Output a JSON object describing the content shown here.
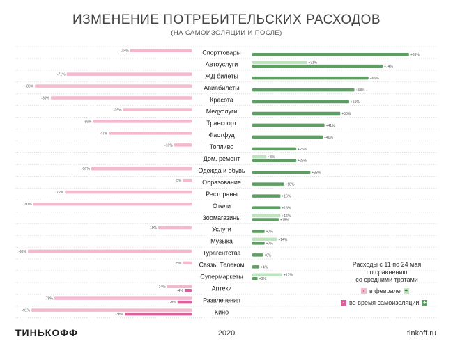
{
  "title": "ИЗМЕНЕНИЕ ПОТРЕБИТЕЛЬСКИХ РАСХОДОВ",
  "subtitle": "(НА САМОИЗОЛЯЦИИ И ПОСЛЕ)",
  "colors": {
    "neg_light": "#f4b8cf",
    "neg_dark": "#d9609a",
    "pos_light": "#bfe3bf",
    "pos_dark": "#5e9e62"
  },
  "chart_data": {
    "type": "bar",
    "title": "ИЗМЕНЕНИЕ ПОТРЕБИТЕЛЬСКИХ РАСХОДОВ",
    "subtitle": "(НА САМОИЗОЛЯЦИИ И ПОСЛЕ)",
    "xlim": [
      -95,
      95
    ],
    "categories": [
      {
        "name": "Спорттовары",
        "light": -35,
        "dark": 89
      },
      {
        "name": "Автоуслуги",
        "light": 31,
        "dark": 74
      },
      {
        "name": "ЖД билеты",
        "light": -71,
        "dark": 66
      },
      {
        "name": "Авиабилеты",
        "light": -89,
        "dark": 58
      },
      {
        "name": "Красота",
        "light": -80,
        "dark": 55
      },
      {
        "name": "Медуслуги",
        "light": -39,
        "dark": 50
      },
      {
        "name": "Транспорт",
        "light": -56,
        "dark": 41
      },
      {
        "name": "Фастфуд",
        "light": -47,
        "dark": 40
      },
      {
        "name": "Топливо",
        "light": -10,
        "dark": 25
      },
      {
        "name": "Дом, ремонт",
        "light": 8,
        "dark": 25
      },
      {
        "name": "Одежда и обувь",
        "light": -57,
        "dark": 33
      },
      {
        "name": "Образование",
        "light": -5,
        "dark": 18
      },
      {
        "name": "Рестораны",
        "light": -72,
        "dark": 16
      },
      {
        "name": "Отели",
        "light": -90,
        "dark": 16
      },
      {
        "name": "Зоомагазины",
        "light": 16,
        "dark": 15
      },
      {
        "name": "Услуги",
        "light": -19,
        "dark": 7
      },
      {
        "name": "Музыка",
        "light": 14,
        "dark": 7
      },
      {
        "name": "Турагентства",
        "light": -93,
        "dark": 6
      },
      {
        "name": "Связь, Телеком",
        "light": -5,
        "dark": 4
      },
      {
        "name": "Супермаркеты",
        "light": 17,
        "dark": 3
      },
      {
        "name": "Аптеки",
        "light": -14,
        "dark": -4
      },
      {
        "name": "Развлечения",
        "light": -78,
        "dark": -8
      },
      {
        "name": "Кино",
        "light": -91,
        "dark": -38
      }
    ],
    "legend": {
      "placement": "bottom-right",
      "light_label": "в феврале",
      "dark_label": "во время самоизоляции"
    }
  },
  "legend": {
    "line1": "Расходы с 11 по 24 мая",
    "line2": "по сравнению",
    "line3": "со средними тратами",
    "light_label": "в феврале",
    "dark_label": "во время самоизоляции",
    "minus": "-",
    "plus": "+"
  },
  "footer": {
    "brand": "ТИНЬКОФФ",
    "year": "2020",
    "site": "tinkoff.ru"
  }
}
